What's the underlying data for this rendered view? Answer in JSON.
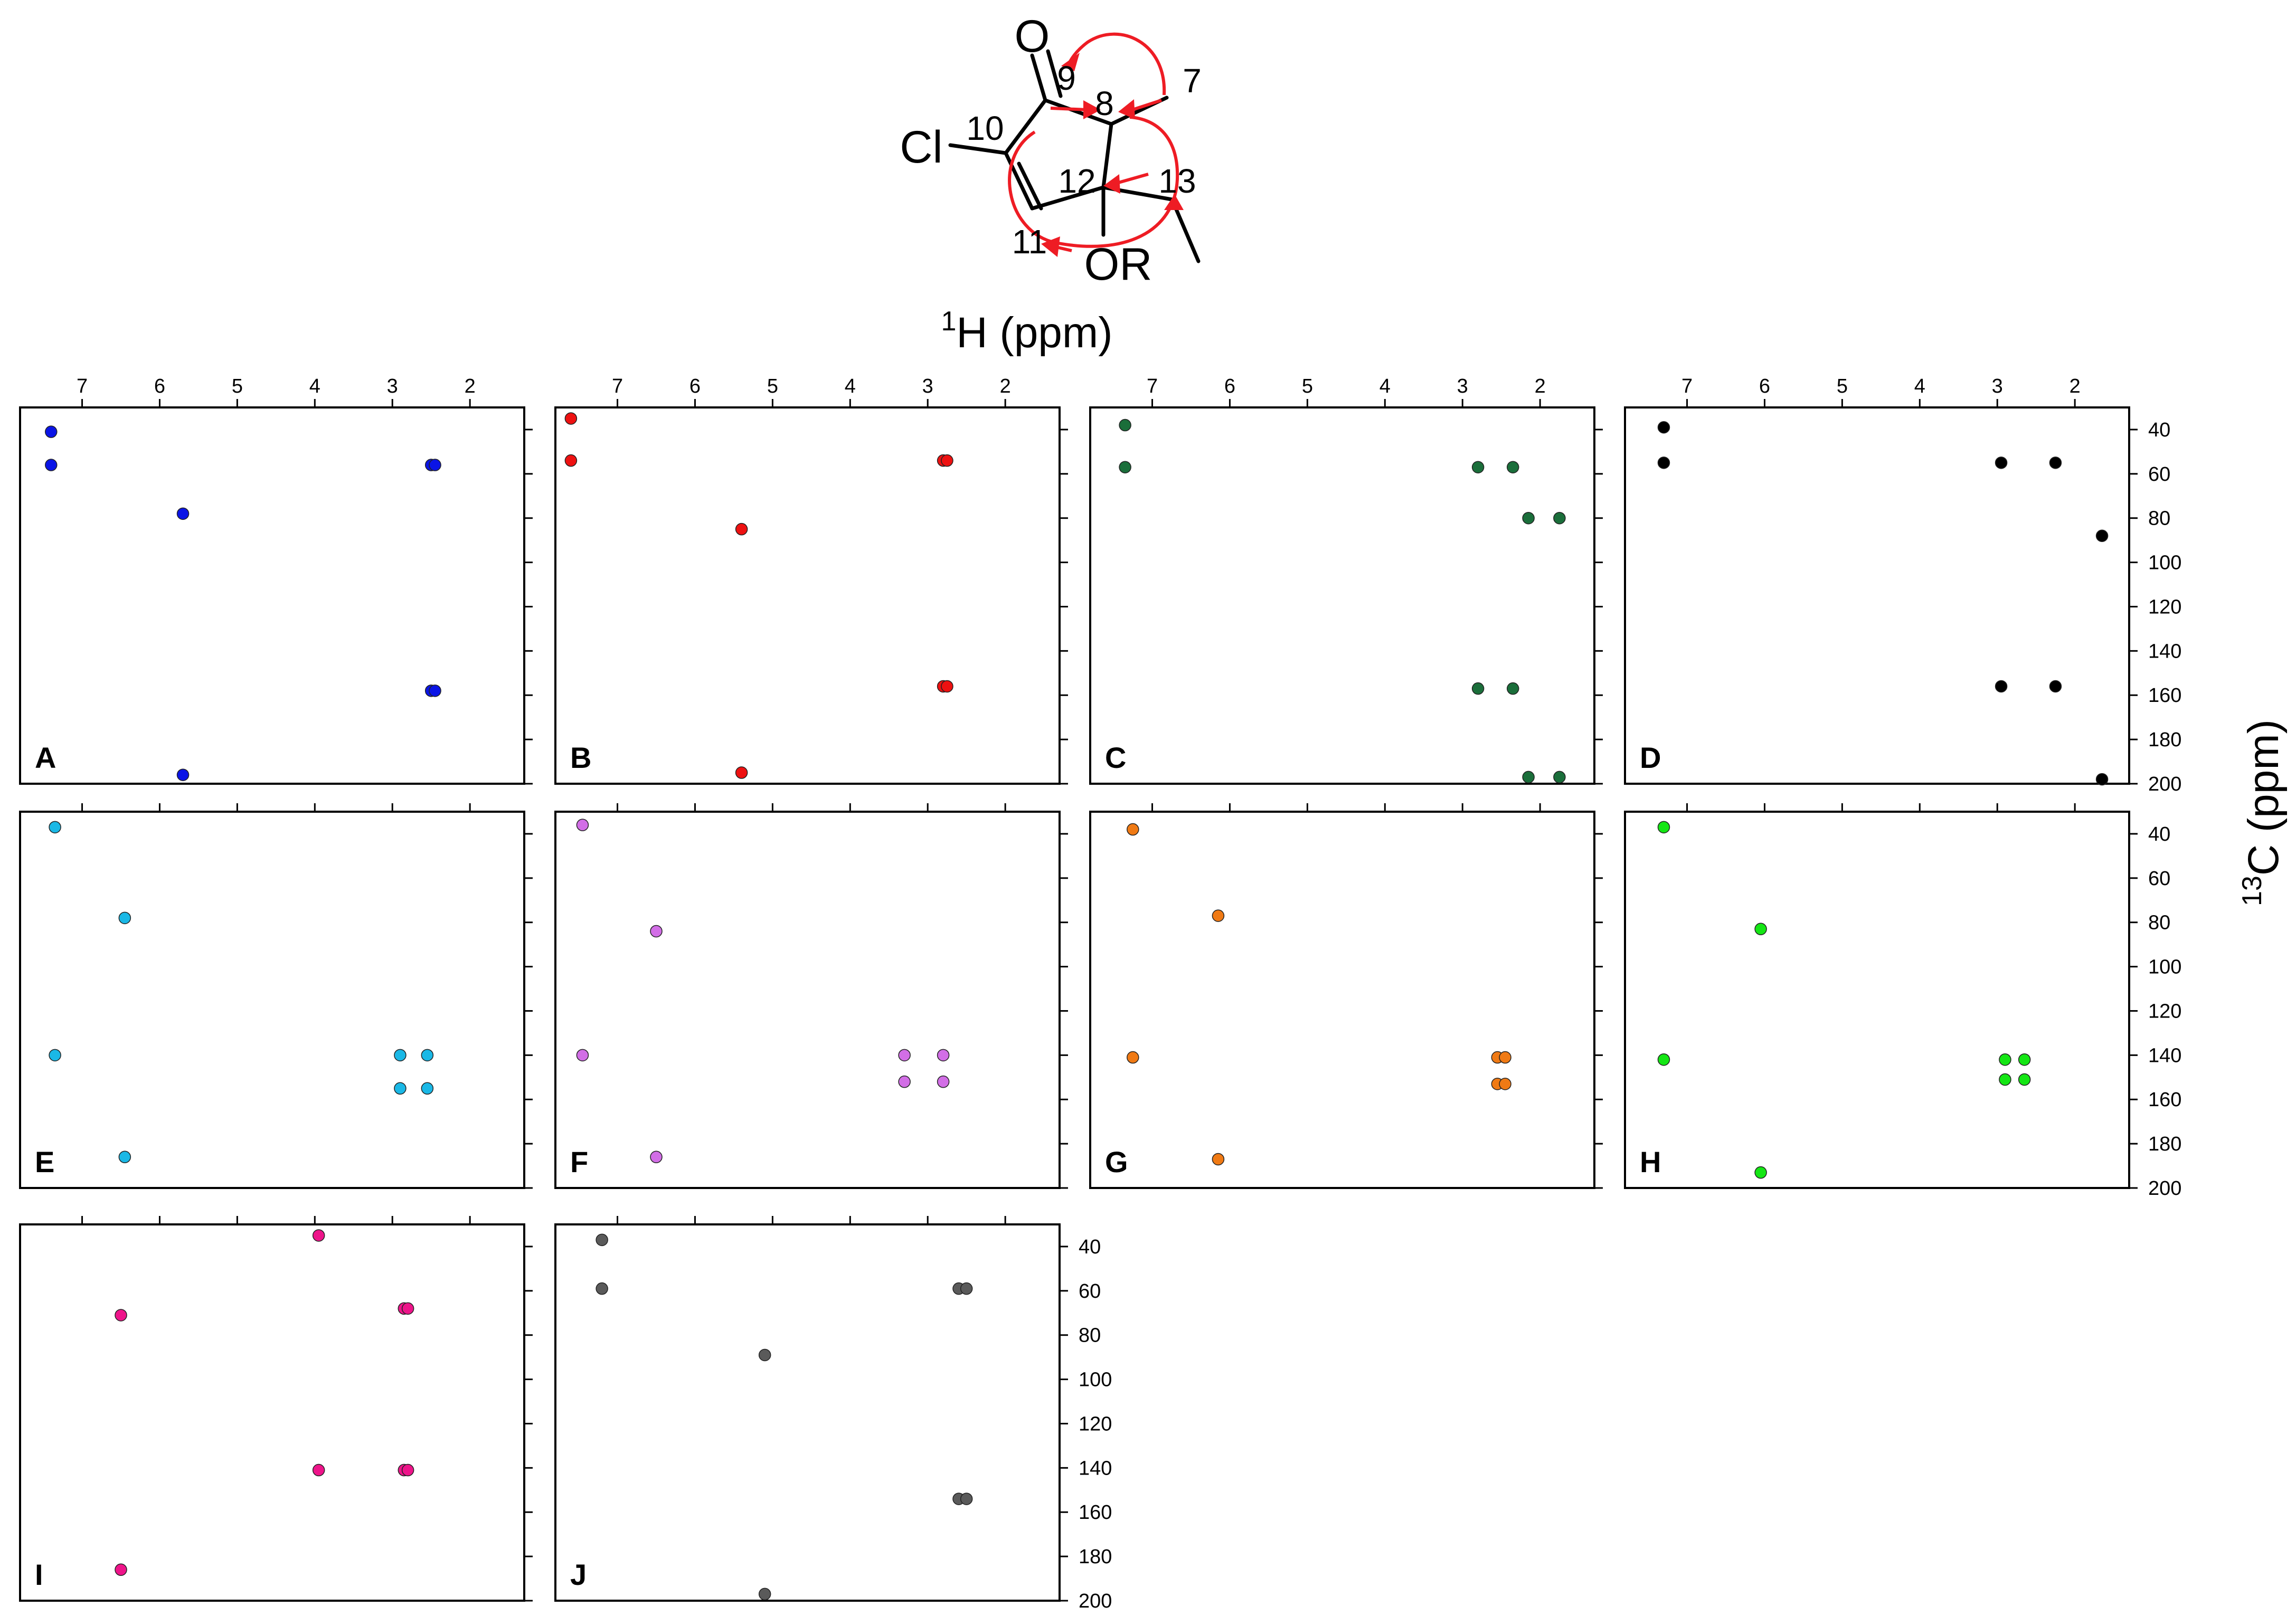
{
  "structure": {
    "atom_O": "O",
    "atom_Cl": "Cl",
    "substituent_OR": "OR",
    "numbers": [
      "7",
      "8",
      "9",
      "10",
      "11",
      "12",
      "13"
    ],
    "arrow_color": "#ee1c24"
  },
  "x_axis_label_sup": "1",
  "x_axis_label_main": "H (ppm)",
  "y_axis_label_sup": "13",
  "y_axis_label_main": "C (ppm)",
  "x_ticks": [
    7,
    6,
    5,
    4,
    3,
    2
  ],
  "y_ticks": [
    40,
    60,
    80,
    100,
    120,
    140,
    160,
    180,
    200
  ],
  "chart_data": [
    {
      "type": "scatter",
      "panel": "A",
      "color": "#0a14e6",
      "xlim": [
        7.8,
        1.3
      ],
      "ylim": [
        30,
        200
      ],
      "points": [
        [
          7.4,
          41
        ],
        [
          7.4,
          56
        ],
        [
          5.7,
          78
        ],
        [
          2.5,
          56
        ],
        [
          2.45,
          56
        ],
        [
          2.5,
          158
        ],
        [
          2.45,
          158
        ],
        [
          5.7,
          196
        ]
      ]
    },
    {
      "type": "scatter",
      "panel": "B",
      "color": "#ee1111",
      "xlim": [
        7.8,
        1.3
      ],
      "ylim": [
        30,
        200
      ],
      "points": [
        [
          7.6,
          35
        ],
        [
          7.6,
          54
        ],
        [
          5.4,
          85
        ],
        [
          2.8,
          54
        ],
        [
          2.75,
          54
        ],
        [
          2.8,
          156
        ],
        [
          2.75,
          156
        ],
        [
          5.4,
          195
        ]
      ]
    },
    {
      "type": "scatter",
      "panel": "C",
      "color": "#1a6e3a",
      "xlim": [
        7.8,
        1.3
      ],
      "ylim": [
        30,
        200
      ],
      "points": [
        [
          7.35,
          38
        ],
        [
          7.35,
          57
        ],
        [
          2.8,
          57
        ],
        [
          2.35,
          57
        ],
        [
          2.15,
          80
        ],
        [
          1.75,
          80
        ],
        [
          2.8,
          157
        ],
        [
          2.35,
          157
        ],
        [
          2.15,
          197
        ],
        [
          1.75,
          197
        ]
      ]
    },
    {
      "type": "scatter",
      "panel": "D",
      "color": "#000000",
      "xlim": [
        7.8,
        1.3
      ],
      "ylim": [
        30,
        200
      ],
      "points": [
        [
          7.3,
          39
        ],
        [
          7.3,
          55
        ],
        [
          2.95,
          55
        ],
        [
          2.25,
          55
        ],
        [
          1.65,
          88
        ],
        [
          2.95,
          156
        ],
        [
          2.25,
          156
        ],
        [
          1.65,
          198
        ]
      ]
    },
    {
      "type": "scatter",
      "panel": "E",
      "color": "#1ab8e6",
      "xlim": [
        7.8,
        1.3
      ],
      "ylim": [
        30,
        200
      ],
      "points": [
        [
          7.35,
          37
        ],
        [
          6.45,
          78
        ],
        [
          7.35,
          140
        ],
        [
          2.9,
          140
        ],
        [
          2.55,
          140
        ],
        [
          2.9,
          155
        ],
        [
          2.55,
          155
        ],
        [
          6.45,
          186
        ]
      ]
    },
    {
      "type": "scatter",
      "panel": "F",
      "color": "#d26ee6",
      "xlim": [
        7.8,
        1.3
      ],
      "ylim": [
        30,
        200
      ],
      "points": [
        [
          7.45,
          36
        ],
        [
          6.5,
          84
        ],
        [
          7.45,
          140
        ],
        [
          3.3,
          140
        ],
        [
          2.8,
          140
        ],
        [
          3.3,
          152
        ],
        [
          2.8,
          152
        ],
        [
          6.5,
          186
        ]
      ]
    },
    {
      "type": "scatter",
      "panel": "G",
      "color": "#f07a14",
      "xlim": [
        7.8,
        1.3
      ],
      "ylim": [
        30,
        200
      ],
      "points": [
        [
          7.25,
          38
        ],
        [
          6.15,
          77
        ],
        [
          7.25,
          141
        ],
        [
          2.55,
          141
        ],
        [
          2.45,
          141
        ],
        [
          2.55,
          153
        ],
        [
          2.45,
          153
        ],
        [
          6.15,
          187
        ]
      ]
    },
    {
      "type": "scatter",
      "panel": "H",
      "color": "#14e614",
      "xlim": [
        7.8,
        1.3
      ],
      "ylim": [
        30,
        200
      ],
      "points": [
        [
          7.3,
          37
        ],
        [
          6.05,
          83
        ],
        [
          7.3,
          142
        ],
        [
          2.9,
          142
        ],
        [
          2.65,
          142
        ],
        [
          2.9,
          151
        ],
        [
          2.65,
          151
        ],
        [
          6.05,
          193
        ]
      ]
    },
    {
      "type": "scatter",
      "panel": "I",
      "color": "#ee148a",
      "xlim": [
        7.8,
        1.3
      ],
      "ylim": [
        30,
        200
      ],
      "points": [
        [
          3.95,
          35
        ],
        [
          6.5,
          71
        ],
        [
          2.85,
          68
        ],
        [
          2.8,
          68
        ],
        [
          3.95,
          141
        ],
        [
          2.85,
          141
        ],
        [
          2.8,
          141
        ],
        [
          6.5,
          186
        ]
      ]
    },
    {
      "type": "scatter",
      "panel": "J",
      "color": "#5a5a5a",
      "xlim": [
        7.8,
        1.3
      ],
      "ylim": [
        30,
        200
      ],
      "points": [
        [
          7.2,
          37
        ],
        [
          7.2,
          59
        ],
        [
          5.1,
          89
        ],
        [
          2.6,
          59
        ],
        [
          2.5,
          59
        ],
        [
          2.6,
          154
        ],
        [
          2.5,
          154
        ],
        [
          5.1,
          197
        ]
      ]
    }
  ]
}
